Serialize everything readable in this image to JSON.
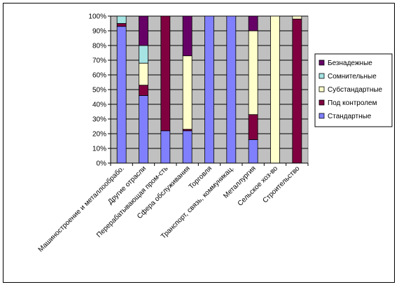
{
  "chart_data": {
    "type": "bar",
    "stacked": true,
    "percent": true,
    "title": "",
    "xlabel": "",
    "ylabel": "",
    "ylim": [
      0,
      100
    ],
    "y_ticks": [
      "0%",
      "10%",
      "20%",
      "30%",
      "40%",
      "50%",
      "60%",
      "70%",
      "80%",
      "90%",
      "100%"
    ],
    "grid": true,
    "legend_position": "right",
    "categories": [
      "Машиностроение и металлообрабо.",
      "Другие отрасли",
      "Перерабатывающая пром-сть",
      "Сфера обслуживания",
      "Торговля",
      "Транспорт, связь, коммуникац.",
      "Металлургия",
      "Сельское хоз-во",
      "Строительство"
    ],
    "series": [
      {
        "name": "Стандартные",
        "color": "#8080ff",
        "values": [
          93,
          46,
          22,
          22,
          100,
          100,
          16,
          0,
          0
        ]
      },
      {
        "name": "Под контролем",
        "color": "#800040",
        "values": [
          2,
          7,
          78,
          1,
          0,
          0,
          17,
          0,
          98
        ]
      },
      {
        "name": "Субстандартные",
        "color": "#ffffcc",
        "values": [
          0,
          15,
          0,
          50,
          0,
          0,
          57,
          100,
          2
        ]
      },
      {
        "name": "Сомнительные",
        "color": "#a6e3e3",
        "values": [
          5,
          12,
          0,
          0,
          0,
          0,
          0,
          0,
          0
        ]
      },
      {
        "name": "Безнадежные",
        "color": "#660066",
        "values": [
          0,
          20,
          0,
          27,
          0,
          0,
          10,
          0,
          0
        ]
      }
    ]
  }
}
